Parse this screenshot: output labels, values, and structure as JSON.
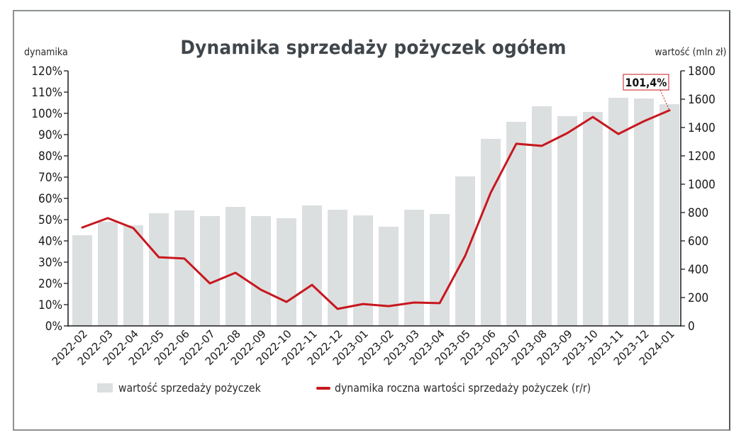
{
  "chart_data": {
    "type": "bar+line",
    "title": "Dynamika sprzedaży pożyczek ogółem",
    "xlabel": "",
    "ylabel_left": "dynamika",
    "ylabel_right": "wartość (mln zł)",
    "ylim_left": [
      0,
      120
    ],
    "ylim_right": [
      0,
      1800
    ],
    "yticks_left": [
      "0%",
      "10%",
      "20%",
      "30%",
      "40%",
      "50%",
      "60%",
      "70%",
      "80%",
      "90%",
      "100%",
      "110%",
      "120%"
    ],
    "yticks_right": [
      "0",
      "200",
      "400",
      "600",
      "800",
      "1000",
      "1200",
      "1400",
      "1600",
      "1800"
    ],
    "grid": false,
    "legend_position": "bottom",
    "categories": [
      "2022-02",
      "2022-03",
      "2022-04",
      "2022-05",
      "2022-06",
      "2022-07",
      "2022-08",
      "2022-09",
      "2022-10",
      "2022-11",
      "2022-12",
      "2023-01",
      "2023-02",
      "2023-03",
      "2023-04",
      "2023-05",
      "2023-06",
      "2023-07",
      "2023-08",
      "2023-09",
      "2023-10",
      "2023-11",
      "2023-12",
      "2024-01"
    ],
    "series": [
      {
        "name": "wartość sprzedaży pożyczek",
        "type": "bar",
        "axis": "right",
        "color": "#dcdfe0",
        "values": [
          640,
          735,
          710,
          795,
          815,
          775,
          840,
          775,
          760,
          850,
          820,
          780,
          700,
          820,
          790,
          1055,
          1320,
          1440,
          1550,
          1480,
          1510,
          1610,
          1605,
          1565
        ]
      },
      {
        "name": "dynamika roczna wartości sprzedaży pożyczek (r/r)",
        "type": "line",
        "axis": "left",
        "color": "#c8171e",
        "values": [
          46.3,
          50.7,
          46.0,
          32.3,
          31.7,
          20.0,
          25.0,
          17.0,
          11.3,
          19.3,
          8.0,
          10.3,
          9.3,
          11.0,
          10.7,
          33.0,
          62.7,
          85.7,
          84.7,
          90.7,
          98.3,
          90.3,
          96.3,
          101.4
        ]
      }
    ],
    "annotations": [
      {
        "text": "101,4%",
        "category": "2024-01",
        "series": "dynamika roczna wartości sprzedaży pożyczek (r/r)"
      }
    ]
  },
  "labels": {
    "title": "Dynamika sprzedaży pożyczek ogółem",
    "left_axis_title": "dynamika",
    "right_axis_title": "wartość (mln zł)",
    "annotation": "101,4%",
    "legend_bar": "wartość sprzedaży pożyczek",
    "legend_line": "dynamika roczna wartości sprzedaży pożyczek (r/r)"
  },
  "colors": {
    "bar": "#dcdfe0",
    "line": "#c8171e",
    "title": "#40464b",
    "axis": "#1a1a1a"
  }
}
